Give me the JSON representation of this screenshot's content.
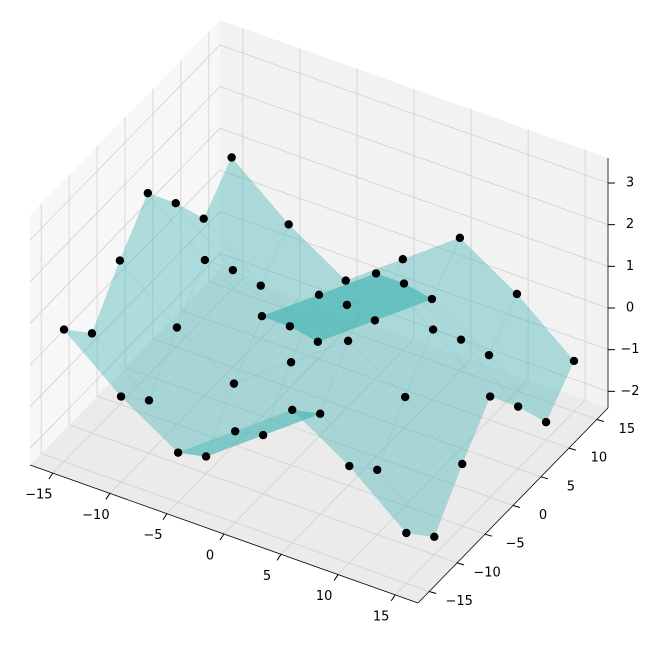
{
  "chart_data": {
    "type": "surface3d",
    "x": [
      -15,
      -10,
      -5,
      0,
      5,
      10,
      15
    ],
    "y": [
      -15,
      -10,
      -5,
      0,
      5,
      10,
      15
    ],
    "z": [
      [
        0.77,
        -0.01,
        1.05,
        1.98,
        1.05,
        -0.01,
        0.77
      ],
      [
        -0.35,
        -1.13,
        -0.07,
        0.86,
        -0.07,
        -1.13,
        -0.35
      ],
      [
        -1.21,
        -1.99,
        -0.93,
        0,
        -0.93,
        -1.99,
        -1.21
      ],
      [
        -0.21,
        -0.99,
        0.07,
        1.0,
        0.07,
        -0.99,
        -0.21
      ],
      [
        0.79,
        0.01,
        1.07,
        2.0,
        1.07,
        0.01,
        0.79
      ],
      [
        -0.07,
        -0.85,
        0.21,
        1.14,
        0.21,
        -0.85,
        -0.07
      ],
      [
        -1.19,
        -1.97,
        -0.91,
        0.02,
        -0.91,
        -1.97,
        -1.19
      ]
    ],
    "xlim": [
      -17,
      17
    ],
    "ylim": [
      -17,
      17
    ],
    "zlim": [
      -2.4,
      3.6
    ],
    "xticks": [
      {
        "value": -15,
        "label": "−15"
      },
      {
        "value": -10,
        "label": "−10"
      },
      {
        "value": -5,
        "label": "−5"
      },
      0,
      5,
      10,
      15
    ],
    "yticks": [
      {
        "value": -15,
        "label": "−15"
      },
      {
        "value": -10,
        "label": "−10"
      },
      {
        "value": -5,
        "label": "−5"
      },
      0,
      5,
      10,
      15
    ],
    "zticks": [
      {
        "value": -2,
        "label": "−2"
      },
      {
        "value": -1,
        "label": "−1"
      },
      0,
      1,
      2,
      3
    ],
    "surface_color": "#40b4b4",
    "point_color": "#000000",
    "grid": true
  }
}
